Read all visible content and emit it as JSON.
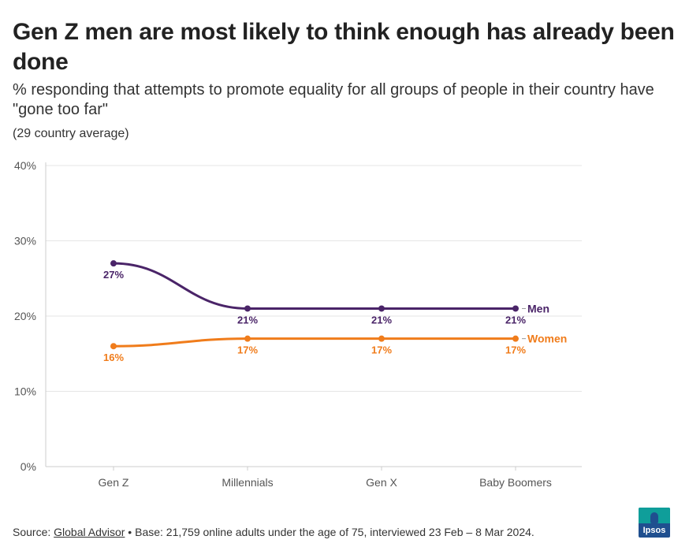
{
  "title": "Gen Z men are most likely to think enough has already been done",
  "subtitle": "% responding that attempts to promote equality for all groups of people in their country have \"gone too far\"",
  "note": "(29 country average)",
  "footer": {
    "source_prefix": "Source: ",
    "source_link": "Global Advisor",
    "base_text": " • Base: 21,759 online adults under the age of 75, interviewed 23 Feb – 8 Mar 2024."
  },
  "logo": {
    "text": "Ipsos"
  },
  "colors": {
    "men": "#4a2468",
    "women": "#f07c1b",
    "grid": "#e6e6e6",
    "axis": "#cccccc"
  },
  "chart_data": {
    "type": "line",
    "title": "Gen Z men are most likely to think enough has already been done",
    "xlabel": "",
    "ylabel": "",
    "categories": [
      "Gen Z",
      "Millennials",
      "Gen X",
      "Baby Boomers"
    ],
    "ylim": [
      0,
      40
    ],
    "yticks": [
      0,
      10,
      20,
      30,
      40
    ],
    "ytick_labels": [
      "0%",
      "10%",
      "20%",
      "30%",
      "40%"
    ],
    "grid": true,
    "series": [
      {
        "name": "Men",
        "values": [
          27,
          21,
          21,
          21
        ],
        "labels": [
          "27%",
          "21%",
          "21%",
          "21%"
        ]
      },
      {
        "name": "Women",
        "values": [
          16,
          17,
          17,
          17
        ],
        "labels": [
          "16%",
          "17%",
          "17%",
          "17%"
        ]
      }
    ]
  }
}
